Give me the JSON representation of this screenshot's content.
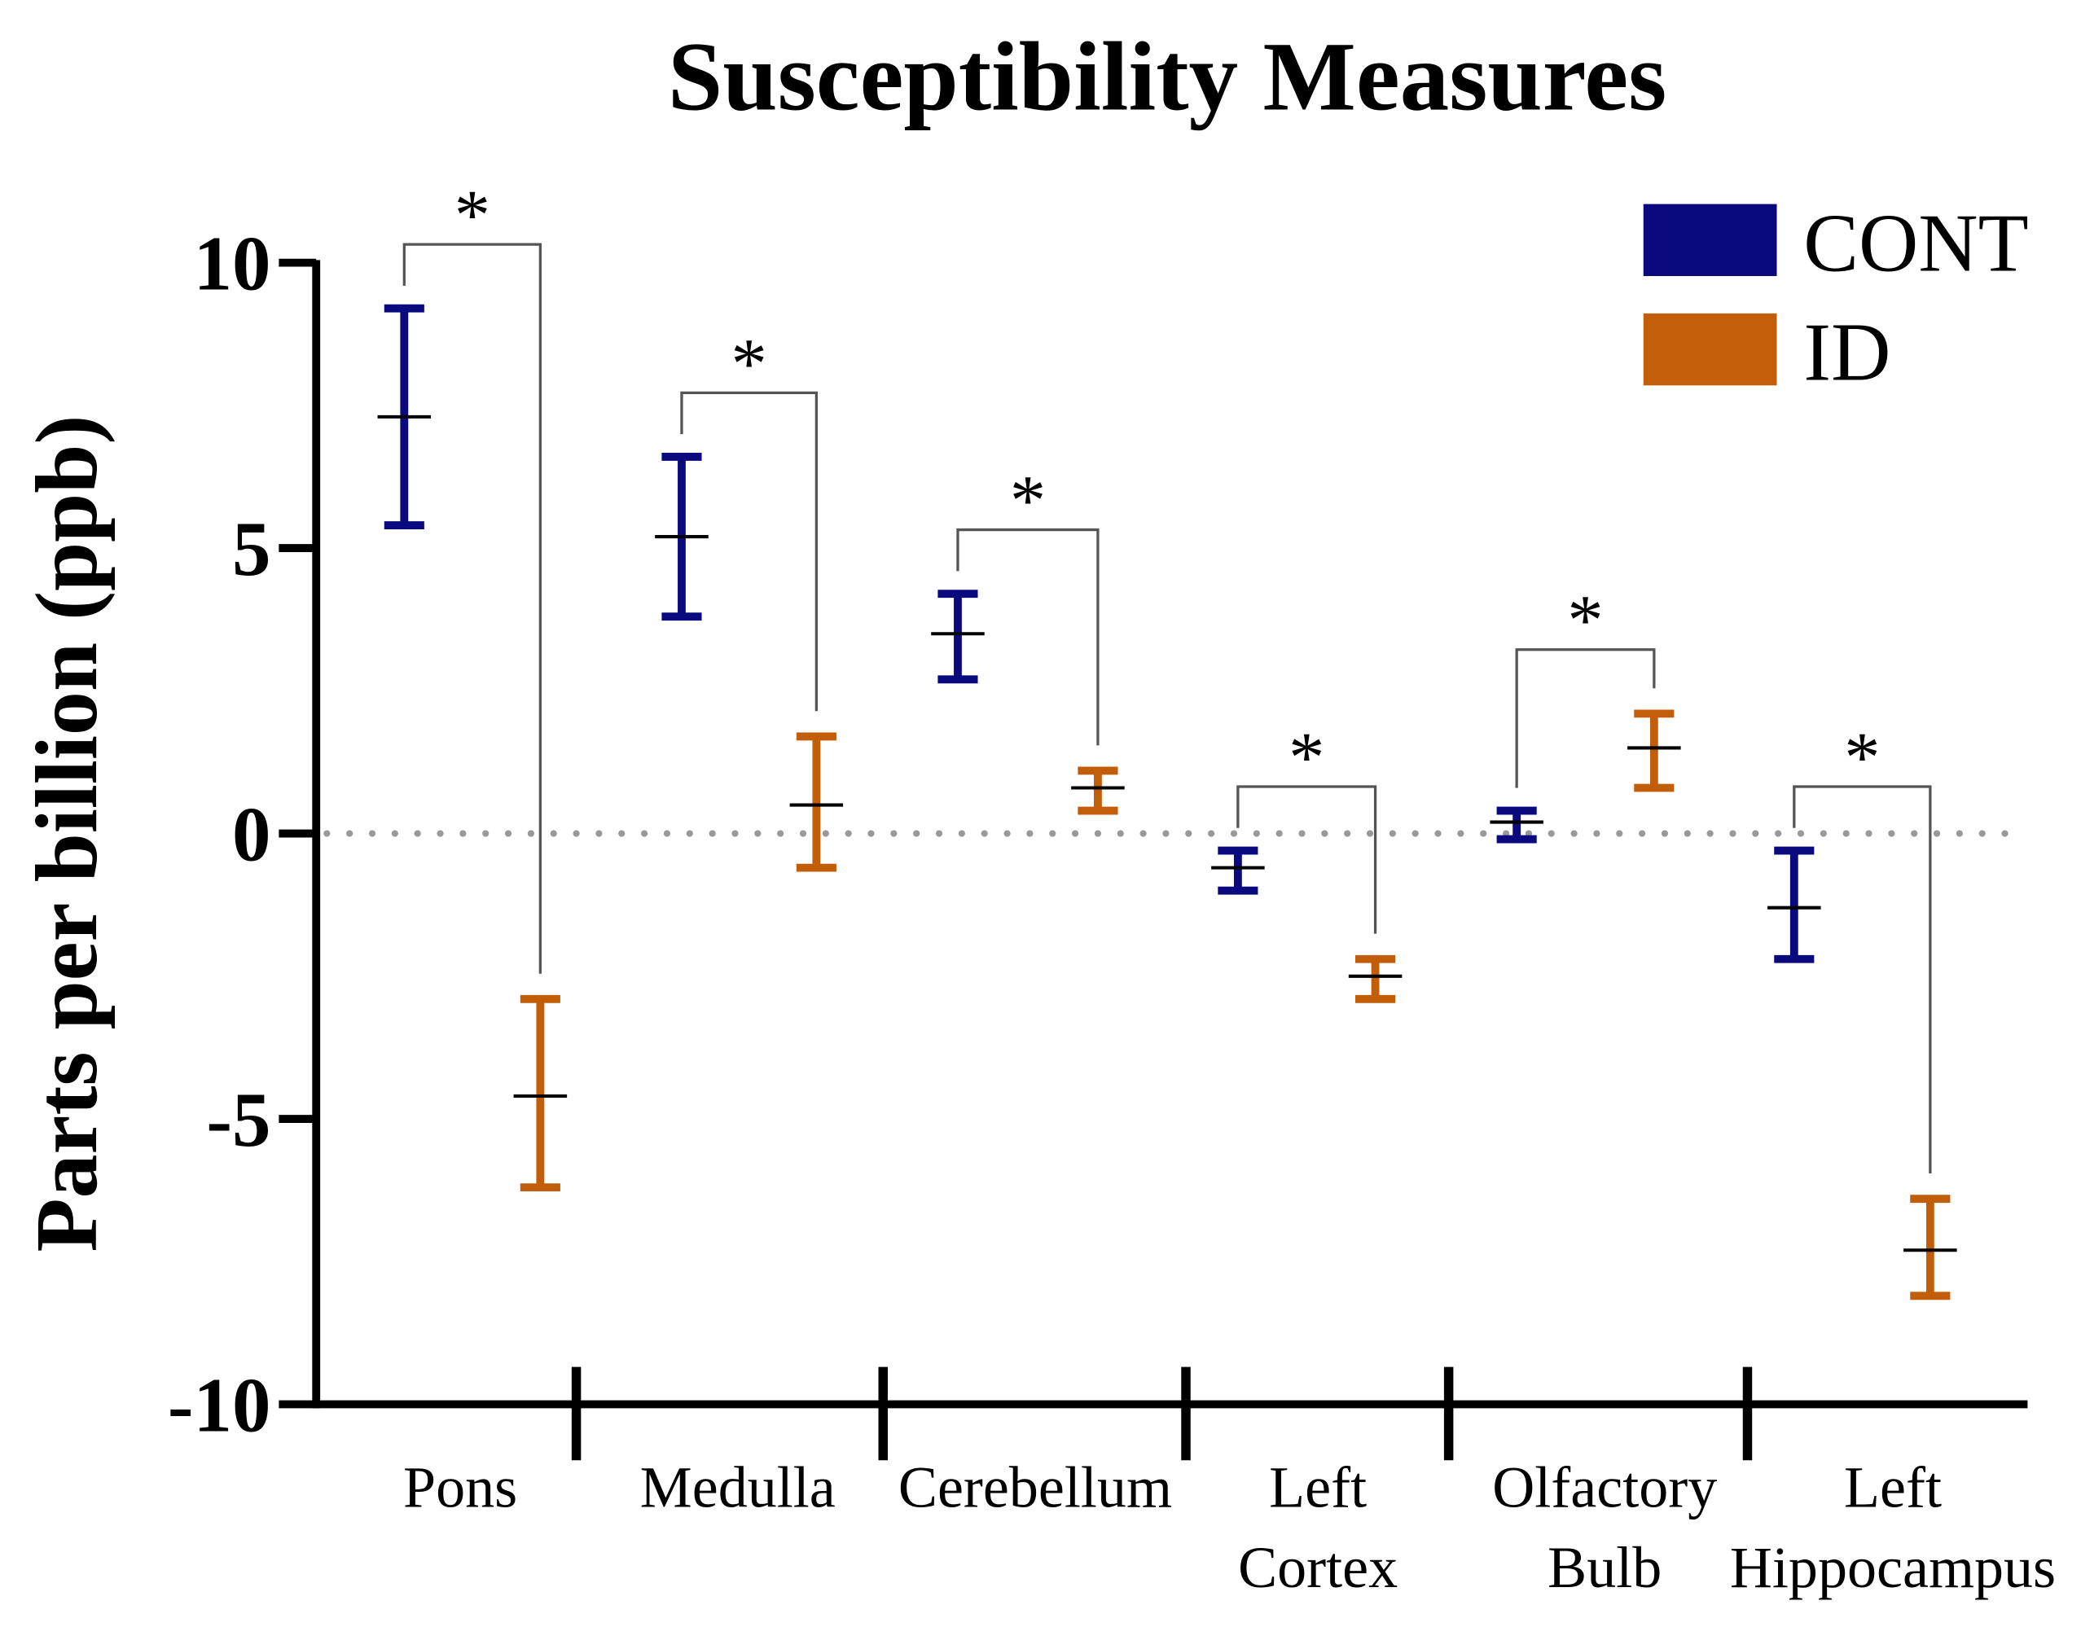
{
  "chart_data": {
    "type": "errorbar",
    "title": "Susceptibility Measures",
    "xlabel": "",
    "ylabel": "Parts per billion (ppb)",
    "ylim": [
      -10,
      10
    ],
    "yticks": [
      "10",
      "5",
      "0",
      "-5",
      "-10"
    ],
    "ytick_values": [
      10,
      5,
      0,
      -5,
      -10
    ],
    "reference_line": 0,
    "legend_placement": "top-right",
    "categories": [
      [
        "Pons"
      ],
      [
        "Medulla"
      ],
      [
        "Cerebellum"
      ],
      [
        "Left",
        "Cortex"
      ],
      [
        "Olfactory",
        "Bulb"
      ],
      [
        "Left",
        "Hippocampus"
      ]
    ],
    "series": [
      {
        "name": "CONT",
        "color": "#0a0a7e",
        "mean": [
          7.3,
          5.2,
          3.5,
          -0.6,
          0.2,
          -1.3
        ],
        "upper": [
          9.2,
          6.6,
          4.2,
          -0.3,
          0.4,
          -0.3
        ],
        "lower": [
          5.4,
          3.8,
          2.7,
          -1.0,
          -0.1,
          -2.2
        ]
      },
      {
        "name": "ID",
        "color": "#c25e0a",
        "mean": [
          -4.6,
          0.5,
          0.8,
          -2.5,
          1.5,
          -7.3
        ],
        "upper": [
          -2.9,
          1.7,
          1.1,
          -2.2,
          2.1,
          -6.4
        ],
        "lower": [
          -6.2,
          -0.6,
          0.4,
          -2.9,
          0.8,
          -8.1
        ]
      }
    ],
    "significance": [
      "*",
      "*",
      "*",
      "*",
      "*",
      "*"
    ]
  }
}
